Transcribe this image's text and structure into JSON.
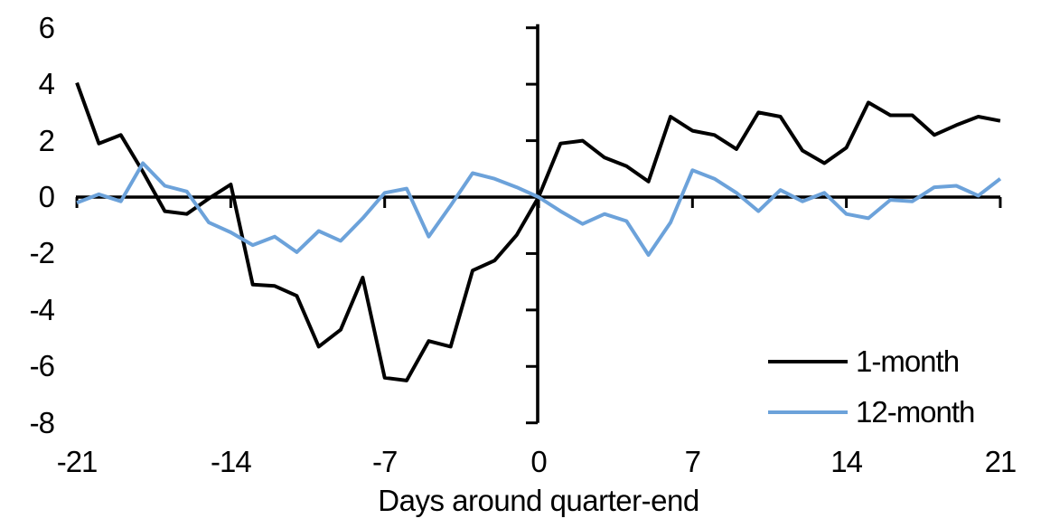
{
  "chart_data": {
    "type": "line",
    "title": "",
    "xlabel": "Days around quarter-end",
    "ylabel": "",
    "xlim": [
      -21,
      21
    ],
    "ylim": [
      -8,
      6
    ],
    "grid": false,
    "legend_position": "lower right",
    "x_ticks": [
      -21,
      -14,
      -7,
      0,
      7,
      14,
      21
    ],
    "x_tick_labels": [
      "-21",
      "-14",
      "-7",
      "0",
      "7",
      "14",
      "21"
    ],
    "y_ticks": [
      6,
      4,
      2,
      0,
      -2,
      -4,
      -6,
      -8
    ],
    "y_tick_labels": [
      "6",
      "4",
      "2",
      "0",
      "-2",
      "-4",
      "-6",
      "-8"
    ],
    "x": [
      -21,
      -20,
      -19,
      -18,
      -17,
      -16,
      -15,
      -14,
      -13,
      -12,
      -11,
      -10,
      -9,
      -8,
      -7,
      -6,
      -5,
      -4,
      -3,
      -2,
      -1,
      0,
      1,
      2,
      3,
      4,
      5,
      6,
      7,
      8,
      9,
      10,
      11,
      12,
      13,
      14,
      15,
      16,
      17,
      18,
      19,
      20,
      21
    ],
    "series": [
      {
        "name": "1-month",
        "color": "#000000",
        "values": [
          4.05,
          1.9,
          2.2,
          0.9,
          -0.5,
          -0.6,
          -0.05,
          0.45,
          -3.1,
          -3.15,
          -3.5,
          -5.3,
          -4.7,
          -2.85,
          -6.4,
          -6.5,
          -5.1,
          -5.3,
          -2.6,
          -2.25,
          -1.35,
          0,
          1.9,
          2.0,
          1.4,
          1.1,
          0.55,
          2.85,
          2.35,
          2.2,
          1.7,
          3.0,
          2.85,
          1.65,
          1.2,
          1.75,
          3.35,
          2.9,
          2.9,
          2.2,
          2.55,
          2.85,
          2.7
        ]
      },
      {
        "name": "12-month",
        "color": "#6CA2DA",
        "values": [
          -0.2,
          0.1,
          -0.15,
          1.2,
          0.4,
          0.2,
          -0.9,
          -1.25,
          -1.7,
          -1.4,
          -1.95,
          -1.2,
          -1.55,
          -0.75,
          0.15,
          0.3,
          -1.4,
          -0.3,
          0.85,
          0.65,
          0.35,
          0,
          -0.5,
          -0.95,
          -0.6,
          -0.85,
          -2.05,
          -0.9,
          0.95,
          0.65,
          0.15,
          -0.5,
          0.25,
          -0.15,
          0.15,
          -0.6,
          -0.75,
          -0.1,
          -0.15,
          0.35,
          0.4,
          0.05,
          0.65
        ]
      }
    ]
  }
}
